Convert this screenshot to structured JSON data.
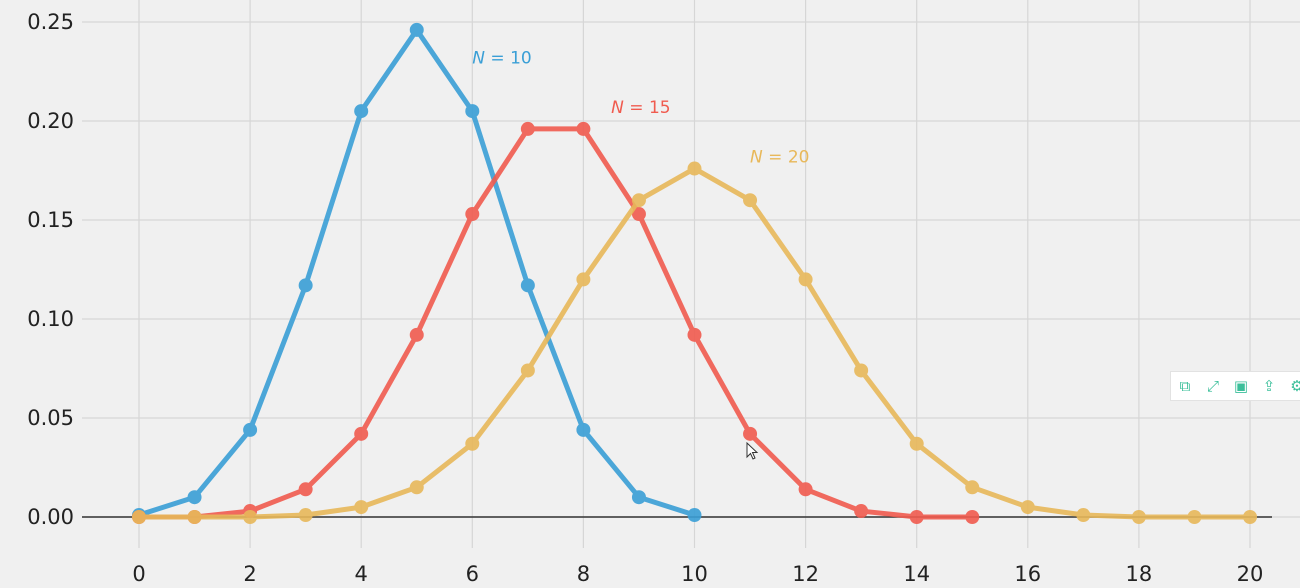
{
  "chart_data": {
    "type": "line",
    "title": "",
    "xlabel": "",
    "ylabel": "",
    "xlim": [
      -1,
      21
    ],
    "ylim": [
      -0.012,
      0.255
    ],
    "grid": true,
    "x_ticks": [
      "0",
      "2",
      "4",
      "6",
      "8",
      "10",
      "12",
      "14",
      "16",
      "18",
      "20"
    ],
    "x_tick_values": [
      0,
      2,
      4,
      6,
      8,
      10,
      12,
      14,
      16,
      18,
      20
    ],
    "y_ticks": [
      "0.00",
      "0.05",
      "0.10",
      "0.15",
      "0.20",
      "0.25"
    ],
    "y_tick_values": [
      0,
      0.05,
      0.1,
      0.15,
      0.2,
      0.25
    ],
    "series": [
      {
        "name": "N = 10",
        "color": "#3a9fd6",
        "label": {
          "italic": "N",
          "text": " = 10",
          "x": 6.0,
          "y": 0.229
        },
        "x": [
          0,
          1,
          2,
          3,
          4,
          5,
          6,
          7,
          8,
          9,
          10
        ],
        "values": [
          0.001,
          0.01,
          0.044,
          0.117,
          0.205,
          0.246,
          0.205,
          0.117,
          0.044,
          0.01,
          0.001
        ]
      },
      {
        "name": "N = 15",
        "color": "#f05b4f",
        "label": {
          "italic": "N",
          "text": " = 15",
          "x": 8.5,
          "y": 0.204
        },
        "x": [
          0,
          1,
          2,
          3,
          4,
          5,
          6,
          7,
          8,
          9,
          10,
          11,
          12,
          13,
          14,
          15
        ],
        "values": [
          0.0,
          0.0,
          0.003,
          0.014,
          0.042,
          0.092,
          0.153,
          0.196,
          0.196,
          0.153,
          0.092,
          0.042,
          0.014,
          0.003,
          0.0,
          0.0
        ]
      },
      {
        "name": "N = 20",
        "color": "#e8b85a",
        "label": {
          "italic": "N",
          "text": " = 20",
          "x": 11.0,
          "y": 0.179
        },
        "x": [
          0,
          1,
          2,
          3,
          4,
          5,
          6,
          7,
          8,
          9,
          10,
          11,
          12,
          13,
          14,
          15,
          16,
          17,
          18,
          19,
          20
        ],
        "values": [
          0.0,
          0.0,
          0.0,
          0.001,
          0.005,
          0.015,
          0.037,
          0.074,
          0.12,
          0.16,
          0.176,
          0.16,
          0.12,
          0.074,
          0.037,
          0.015,
          0.005,
          0.001,
          0.0,
          0.0,
          0.0
        ]
      }
    ]
  },
  "toolbar": {
    "items": [
      {
        "icon": "copy-icon",
        "glyph": "⧉"
      },
      {
        "icon": "fullscreen-icon",
        "glyph": "⤢"
      },
      {
        "icon": "save-icon",
        "glyph": "▣"
      },
      {
        "icon": "export-icon",
        "glyph": "⇪"
      },
      {
        "icon": "settings-icon",
        "glyph": "⚙"
      }
    ],
    "color": "#3bbf9a"
  }
}
